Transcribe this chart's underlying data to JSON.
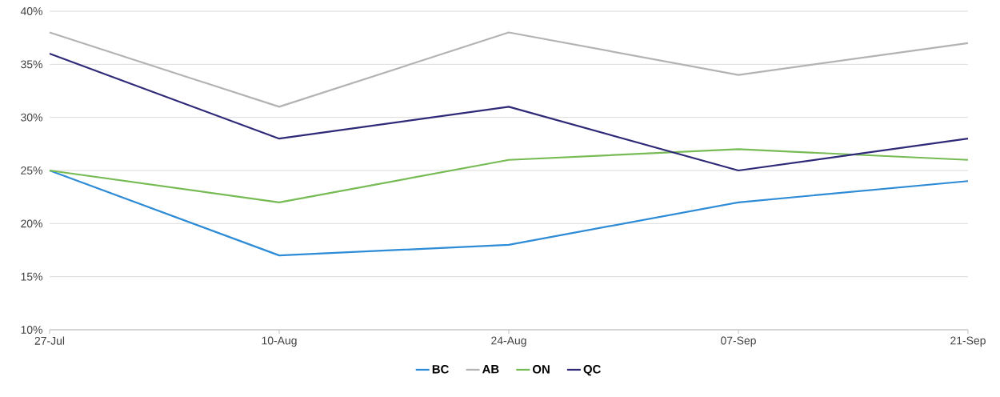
{
  "chart_data": {
    "type": "line",
    "categories": [
      "27-Jul",
      "10-Aug",
      "24-Aug",
      "07-Sep",
      "21-Sep"
    ],
    "series": [
      {
        "name": "BC",
        "color": "#2e8bd6",
        "values": [
          25,
          17,
          18,
          22,
          24
        ]
      },
      {
        "name": "AB",
        "color": "#b3b3b3",
        "values": [
          38,
          31,
          38,
          34,
          37
        ]
      },
      {
        "name": "ON",
        "color": "#77bb55",
        "values": [
          25,
          22,
          26,
          27,
          26
        ]
      },
      {
        "name": "QC",
        "color": "#2e2a78",
        "values": [
          36,
          28,
          31,
          25,
          28
        ]
      }
    ],
    "ylim": [
      10,
      40
    ],
    "yticks": [
      {
        "value": 10,
        "label": "10%"
      },
      {
        "value": 15,
        "label": "15%"
      },
      {
        "value": 20,
        "label": "20%"
      },
      {
        "value": 25,
        "label": "25%"
      },
      {
        "value": 30,
        "label": "30%"
      },
      {
        "value": 35,
        "label": "35%"
      },
      {
        "value": 40,
        "label": "40%"
      }
    ],
    "grid": "y",
    "legend": "bottom",
    "marker": "none",
    "line_style": "solid"
  }
}
